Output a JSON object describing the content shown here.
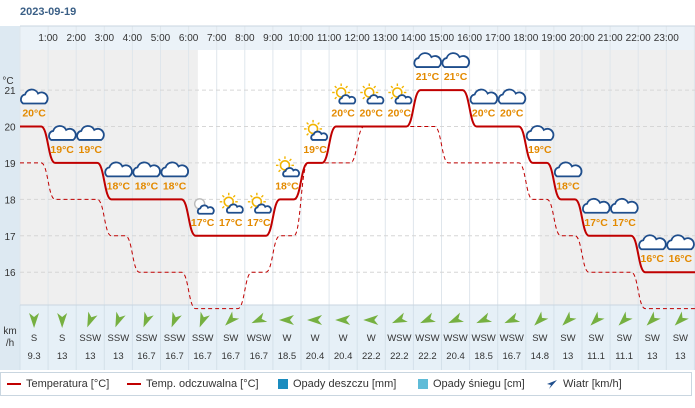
{
  "date": "2023-09-19",
  "units": {
    "temp": "°C",
    "wind_top": "km",
    "wind_bottom": "/h"
  },
  "colors": {
    "temperature": "#c00000",
    "feels_like": "#c00000",
    "rain": "#1a8cbf",
    "snow": "#5fbcd8",
    "wind": "#1f4e8c",
    "label": "#e38a00"
  },
  "chart_data": {
    "type": "line",
    "x": [
      "1:00",
      "2:00",
      "3:00",
      "4:00",
      "5:00",
      "6:00",
      "7:00",
      "8:00",
      "9:00",
      "10:00",
      "11:00",
      "12:00",
      "13:00",
      "14:00",
      "15:00",
      "16:00",
      "17:00",
      "18:00",
      "19:00",
      "20:00",
      "21:00",
      "22:00",
      "23:00"
    ],
    "y_ticks": [
      16,
      17,
      18,
      19,
      20,
      21
    ],
    "ylim": [
      15.1,
      22.1
    ],
    "hourly": [
      {
        "temp": 20,
        "feels": 19,
        "icon": "cloudy",
        "wind_dir": "S",
        "wind_deg": 180,
        "wind": "9.3"
      },
      {
        "temp": 19,
        "feels": 18,
        "icon": "cloudy",
        "wind_dir": "S",
        "wind_deg": 180,
        "wind": "13"
      },
      {
        "temp": 19,
        "feels": 18,
        "icon": "cloudy",
        "wind_dir": "SSW",
        "wind_deg": 202,
        "wind": "13"
      },
      {
        "temp": 18,
        "feels": 17,
        "icon": "cloudy",
        "wind_dir": "SSW",
        "wind_deg": 202,
        "wind": "13"
      },
      {
        "temp": 18,
        "feels": 16,
        "icon": "cloudy",
        "wind_dir": "SSW",
        "wind_deg": 202,
        "wind": "16.7"
      },
      {
        "temp": 18,
        "feels": 16,
        "icon": "cloudy",
        "wind_dir": "SSW",
        "wind_deg": 202,
        "wind": "16.7"
      },
      {
        "temp": 17,
        "feels": 15,
        "icon": "partly-cloudy-night",
        "wind_dir": "SSW",
        "wind_deg": 202,
        "wind": "16.7"
      },
      {
        "temp": 17,
        "feels": 15,
        "icon": "partly-cloudy-sun",
        "wind_dir": "SW",
        "wind_deg": 225,
        "wind": "16.7"
      },
      {
        "temp": 17,
        "feels": 16,
        "icon": "partly-cloudy-sun",
        "wind_dir": "WSW",
        "wind_deg": 247,
        "wind": "16.7"
      },
      {
        "temp": 18,
        "feels": 17,
        "icon": "partly-cloudy-sun",
        "wind_dir": "W",
        "wind_deg": 270,
        "wind": "18.5"
      },
      {
        "temp": 19,
        "feels": 19,
        "icon": "partly-cloudy-sun",
        "wind_dir": "W",
        "wind_deg": 270,
        "wind": "20.4"
      },
      {
        "temp": 20,
        "feels": 19,
        "icon": "partly-cloudy-sun",
        "wind_dir": "W",
        "wind_deg": 270,
        "wind": "20.4"
      },
      {
        "temp": 20,
        "feels": 20,
        "icon": "partly-cloudy-sun",
        "wind_dir": "W",
        "wind_deg": 270,
        "wind": "22.2"
      },
      {
        "temp": 20,
        "feels": 20,
        "icon": "partly-cloudy-sun",
        "wind_dir": "WSW",
        "wind_deg": 247,
        "wind": "22.2"
      },
      {
        "temp": 21,
        "feels": 20,
        "icon": "cloudy",
        "wind_dir": "WSW",
        "wind_deg": 247,
        "wind": "22.2"
      },
      {
        "temp": 21,
        "feels": 19,
        "icon": "cloudy",
        "wind_dir": "WSW",
        "wind_deg": 247,
        "wind": "20.4"
      },
      {
        "temp": 20,
        "feels": 19,
        "icon": "cloudy",
        "wind_dir": "WSW",
        "wind_deg": 247,
        "wind": "18.5"
      },
      {
        "temp": 20,
        "feels": 19,
        "icon": "cloudy",
        "wind_dir": "WSW",
        "wind_deg": 247,
        "wind": "16.7"
      },
      {
        "temp": 19,
        "feels": 18,
        "icon": "cloudy",
        "wind_dir": "SW",
        "wind_deg": 225,
        "wind": "14.8"
      },
      {
        "temp": 18,
        "feels": 17,
        "icon": "cloudy",
        "wind_dir": "SW",
        "wind_deg": 225,
        "wind": "13"
      },
      {
        "temp": 17,
        "feels": 16,
        "icon": "cloudy",
        "wind_dir": "SW",
        "wind_deg": 225,
        "wind": "11.1"
      },
      {
        "temp": 17,
        "feels": 16,
        "icon": "cloudy",
        "wind_dir": "SW",
        "wind_deg": 225,
        "wind": "11.1"
      },
      {
        "temp": 16,
        "feels": 15,
        "icon": "cloudy",
        "wind_dir": "SW",
        "wind_deg": 225,
        "wind": "13"
      },
      {
        "temp": 16,
        "feels": 15,
        "icon": "cloudy",
        "wind_dir": "SW",
        "wind_deg": 225,
        "wind": "13"
      }
    ],
    "grid": true,
    "night_hours": {
      "dark_before": 6.33,
      "dark_after": 18.5
    }
  },
  "legend": [
    {
      "label": "Temperatura [°C]",
      "kind": "line",
      "color": "#c00000"
    },
    {
      "label": "Temp. odczuwalna [°C]",
      "kind": "line",
      "color": "#c00000"
    },
    {
      "label": "Opady deszczu [mm]",
      "kind": "box",
      "color": "#1a8cbf"
    },
    {
      "label": "Opady śniegu [cm]",
      "kind": "box",
      "color": "#5fbcd8"
    },
    {
      "label": "Wiatr [km/h]",
      "kind": "arrow",
      "color": "#1f4e8c"
    }
  ]
}
